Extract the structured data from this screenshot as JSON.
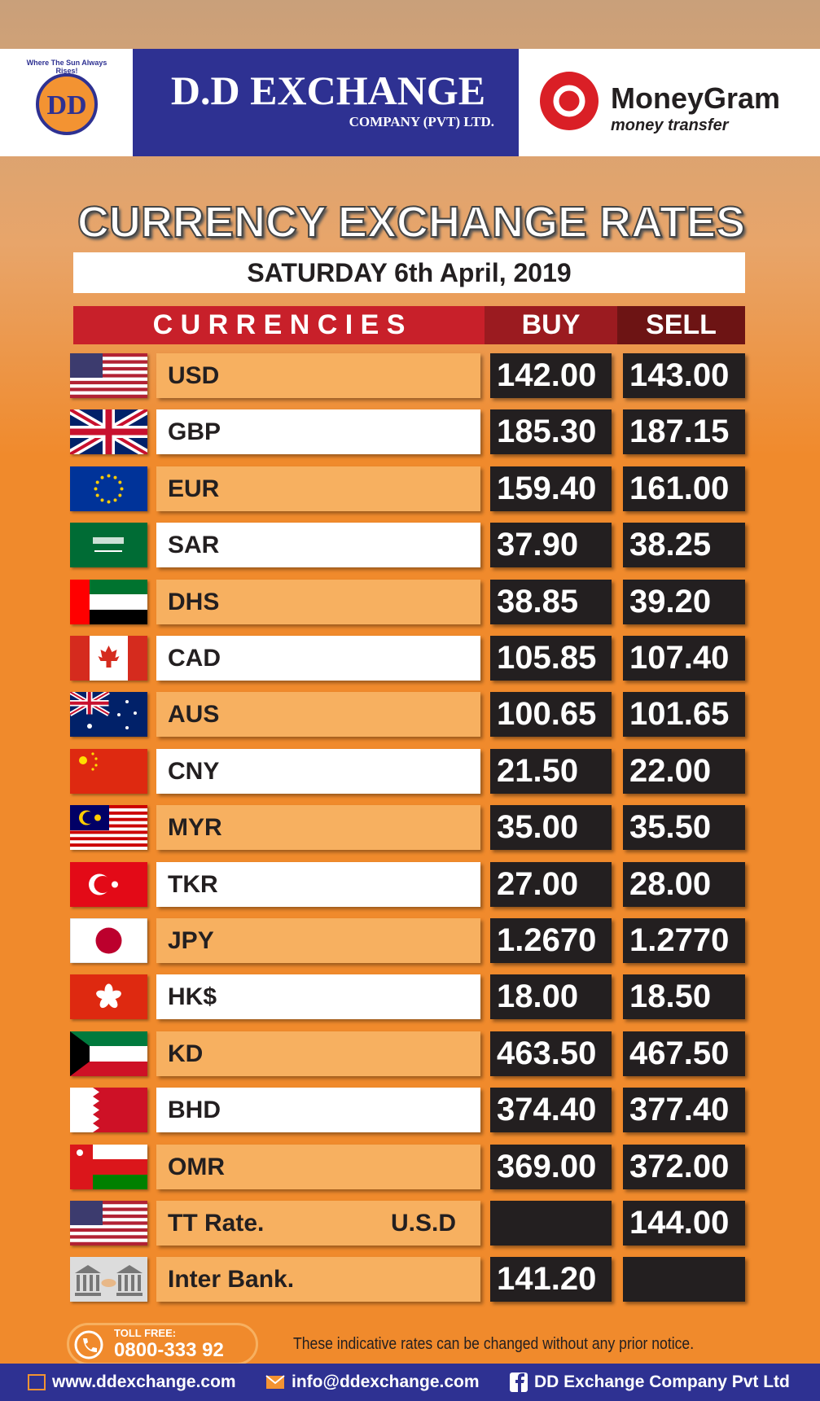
{
  "header": {
    "logo_motto": "Where The Sun Always Rises!",
    "logo_letters": "DD",
    "company": "D.D EXCHANGE",
    "company_sub": "COMPANY (PVT) LTD.",
    "partner": "MoneyGram",
    "partner_sub": "money transfer"
  },
  "title": "CURRENCY EXCHANGE RATES",
  "date": "SATURDAY 6th April, 2019",
  "table": {
    "columns": [
      "C U R R E N C I E S",
      "BUY",
      "SELL"
    ],
    "rows": [
      {
        "currency": "USD",
        "buy": "142.00",
        "sell": "143.00"
      },
      {
        "currency": "GBP",
        "buy": "185.30",
        "sell": "187.15"
      },
      {
        "currency": "EUR",
        "buy": "159.40",
        "sell": "161.00"
      },
      {
        "currency": "SAR",
        "buy": "37.90",
        "sell": "38.25"
      },
      {
        "currency": "DHS",
        "buy": "38.85",
        "sell": "39.20"
      },
      {
        "currency": "CAD",
        "buy": "105.85",
        "sell": "107.40"
      },
      {
        "currency": "AUS",
        "buy": "100.65",
        "sell": "101.65"
      },
      {
        "currency": "CNY",
        "buy": "21.50",
        "sell": "22.00"
      },
      {
        "currency": "MYR",
        "buy": "35.00",
        "sell": "35.50"
      },
      {
        "currency": "TKR",
        "buy": "27.00",
        "sell": "28.00"
      },
      {
        "currency": "JPY",
        "buy": "1.2670",
        "sell": "1.2770"
      },
      {
        "currency": "HK$",
        "buy": "18.00",
        "sell": "18.50"
      },
      {
        "currency": "KD",
        "buy": "463.50",
        "sell": "467.50"
      },
      {
        "currency": "BHD",
        "buy": "374.40",
        "sell": "377.40"
      },
      {
        "currency": "OMR",
        "buy": "369.00",
        "sell": "372.00"
      },
      {
        "currency": "TT Rate.",
        "note": "U.S.D",
        "sell": "144.00"
      },
      {
        "currency": "Inter Bank.",
        "buy": "141.20"
      }
    ]
  },
  "footer": {
    "toll_free_label": "TOLL FREE:",
    "toll_free": "0800-333 92",
    "notice": "These indicative rates can be changed without any prior notice.",
    "website": "www.ddexchange.com",
    "email": "info@ddexchange.com",
    "facebook": "DD Exchange Company Pvt Ltd"
  }
}
